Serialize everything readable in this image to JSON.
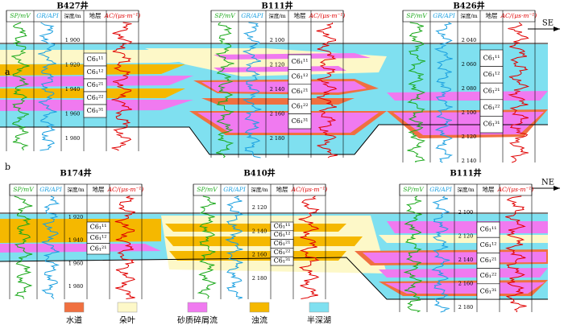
{
  "panels": [
    {
      "label": "a",
      "direction": "SE",
      "wells": [
        {
          "name": "B427井",
          "depths": [
            "1 900",
            "1 920",
            "1 940",
            "1 960",
            "1 980"
          ],
          "layers": [
            "C6₁¹¹",
            "C6₁¹²",
            "C6₁²¹",
            "C6₁²²",
            "C6₁³¹"
          ]
        },
        {
          "name": "B111井",
          "depths": [
            "2 100",
            "2 120",
            "2 140",
            "2 160",
            "2 180"
          ],
          "layers": [
            "C6₁¹¹",
            "C6₁¹²",
            "C6₁²¹",
            "C6₁²²",
            "C6₁³¹"
          ]
        },
        {
          "name": "B426井",
          "depths": [
            "2 040",
            "2 060",
            "2 080",
            "2 100",
            "2 120",
            "2 140"
          ],
          "layers": [
            "C6₁¹¹",
            "C6₁¹²",
            "C6₁²¹",
            "C6₁²²",
            "C6₁³¹"
          ]
        }
      ]
    },
    {
      "label": "b",
      "direction": "NE",
      "wells": [
        {
          "name": "B174井",
          "depths": [
            "1 920",
            "1 940",
            "1 960",
            "1 980"
          ],
          "layers": [
            "C6₁¹¹",
            "C6₁¹²",
            "C6₁²¹"
          ]
        },
        {
          "name": "B410井",
          "depths": [
            "2 120",
            "2 140",
            "2 160",
            "2 180"
          ],
          "layers": [
            "C6₁¹¹",
            "C6₁¹²",
            "C6₁²¹",
            "C6₁²²",
            "C6₁³¹"
          ]
        },
        {
          "name": "B111井",
          "depths": [
            "2 100",
            "2 120",
            "2 140",
            "2 160",
            "2 180"
          ],
          "layers": [
            "C6₁¹¹",
            "C6₁¹²",
            "C6₁²¹",
            "C6₁²²",
            "C6₁³¹"
          ]
        }
      ]
    }
  ],
  "column_headers": {
    "sp": "SP/mV",
    "gr": "GR/API",
    "depth": "深度/m",
    "strata": "地层",
    "ac": "AC/(μs·m⁻¹)"
  },
  "legend": [
    "水道",
    "朵叶",
    "砂质碎屑流",
    "浊流",
    "半深湖"
  ]
}
